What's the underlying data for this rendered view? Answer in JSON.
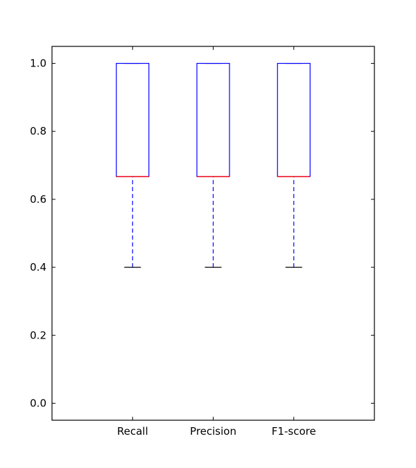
{
  "chart_data": {
    "type": "boxplot",
    "categories": [
      "Recall",
      "Precision",
      "F1-score"
    ],
    "boxes": [
      {
        "label": "Recall",
        "whisker_low": 0.4,
        "q1": 0.667,
        "median": 0.667,
        "q3": 1.0,
        "whisker_high": 1.0
      },
      {
        "label": "Precision",
        "whisker_low": 0.4,
        "q1": 0.667,
        "median": 0.667,
        "q3": 1.0,
        "whisker_high": 1.0
      },
      {
        "label": "F1-score",
        "whisker_low": 0.4,
        "q1": 0.667,
        "median": 0.667,
        "q3": 1.0,
        "whisker_high": 1.0
      }
    ],
    "ylim": [
      -0.05,
      1.05
    ],
    "yticks": [
      0.0,
      0.2,
      0.4,
      0.6,
      0.8,
      1.0
    ],
    "ytick_labels": [
      "0.0",
      "0.2",
      "0.4",
      "0.6",
      "0.8",
      "1.0"
    ],
    "grid": false,
    "colors": {
      "box": "#0000ff",
      "median": "#ff0000",
      "whisker": "#0000ff",
      "cap": "#000000",
      "axes": "#000000"
    }
  }
}
